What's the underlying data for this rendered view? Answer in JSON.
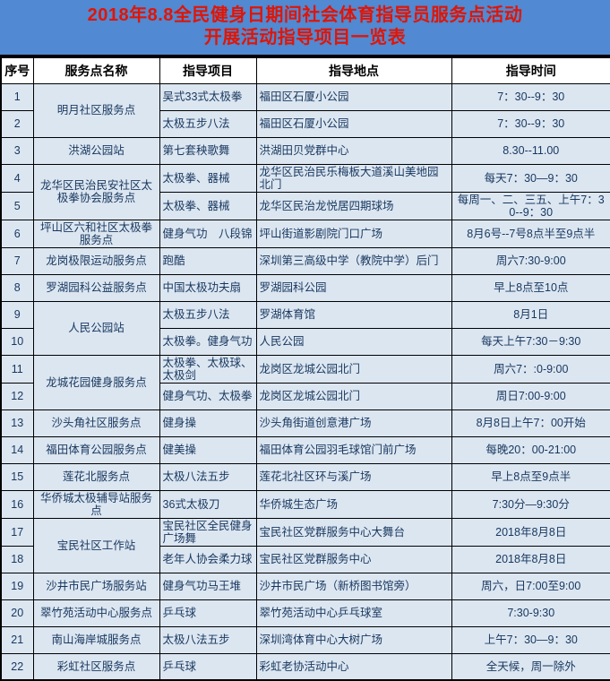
{
  "title": {
    "line1": "2018年8.8全民健身日期间社会体育指导员服务点活动",
    "line2": "开展活动指导项目一览表"
  },
  "columns": [
    "序号",
    "服务点名称",
    "指导项目",
    "指导地点",
    "指导时间"
  ],
  "colors": {
    "band_blue": "#5189d2",
    "title_red": "#e01505",
    "row_bg": "#dce6f1",
    "cell_text": "#17375e",
    "header_bg": "#ffffff",
    "header_text": "#000000",
    "border": "#000000"
  },
  "rows": [
    {
      "no": "1",
      "name": "明月社区服务点",
      "name_rowspan": 2,
      "project": "吴式33式太极拳",
      "location": "福田区石厦小公园",
      "time": "7：30--9：30"
    },
    {
      "no": "2",
      "name": null,
      "project": "太极五步八法",
      "location": "福田区石厦小公园",
      "time": "7：30--9：30"
    },
    {
      "no": "3",
      "name": "洪湖公园站",
      "name_rowspan": 1,
      "project": "第七套秧歌舞",
      "location": "洪湖田贝党群中心",
      "time": "8.30--11.00"
    },
    {
      "no": "4",
      "name": "龙华区民治民安社区太极拳协会服务点",
      "name_rowspan": 2,
      "project": "太极拳、器械",
      "location": "龙华区民治民乐梅板大道溪山美地园北门",
      "time": "每天7：30—9：30"
    },
    {
      "no": "5",
      "name": null,
      "project": "太极拳、器械",
      "location": "龙华区民治龙悦居四期球场",
      "time": "每周一、二、三五、上午7：30--9：30"
    },
    {
      "no": "6",
      "name": "坪山区六和社区太极拳服务点",
      "name_rowspan": 1,
      "project": "健身气功　八段锦",
      "location": "坪山街道影剧院门口广场",
      "time": "8月6号--7号8点半至9点半"
    },
    {
      "no": "7",
      "name": "龙岗极限运动服务点",
      "name_rowspan": 1,
      "project": "跑酷",
      "location": "深圳第三高级中学（教院中学）后门",
      "time": "周六7:30-9:00"
    },
    {
      "no": "8",
      "name": "罗湖园科公益服务点",
      "name_rowspan": 1,
      "project": "中国太极功夫扇",
      "location": "罗湖园科公园",
      "time": "早上8点至10点"
    },
    {
      "no": "9",
      "name": "人民公园站",
      "name_rowspan": 2,
      "project": "太极五步八法",
      "location": "罗湖体育馆",
      "time": "8月1日"
    },
    {
      "no": "10",
      "name": null,
      "project": "太极拳。健身气功",
      "location": "人民公园",
      "time": "每天上午7:30－9:30"
    },
    {
      "no": "11",
      "name": "龙城花园健身服务点",
      "name_rowspan": 2,
      "project": "太极拳、太极球、太极剑",
      "location": "龙岗区龙城公园北门",
      "time": "周六7：:0-9:00"
    },
    {
      "no": "12",
      "name": null,
      "project": "健身气功、太极拳",
      "location": "龙岗区龙城公园北门",
      "time": "周日7:00-9:00"
    },
    {
      "no": "13",
      "name": "沙头角社区服务点",
      "name_rowspan": 1,
      "project": "健身操",
      "location": "沙头角街道创意港广场",
      "time": "8月8日上午7：00开始"
    },
    {
      "no": "14",
      "name": "福田体育公园服务点",
      "name_rowspan": 1,
      "project": "健美操",
      "location": "福田体育公园羽毛球馆门前广场",
      "time": "每晚20：00-21:00"
    },
    {
      "no": "15",
      "name": "莲花北服务点",
      "name_rowspan": 1,
      "project": "太极八法五步",
      "location": "莲花北社区环与溪广场",
      "time": "早上8点至9点半"
    },
    {
      "no": "16",
      "name": "华侨城太极辅导站服务点",
      "name_rowspan": 1,
      "project": "36式太极刀",
      "location": "华侨城生态广场",
      "time": "7:30分—9:30分"
    },
    {
      "no": "17",
      "name": "宝民社区工作站",
      "name_rowspan": 2,
      "project": "宝民社区全民健身广场舞",
      "location": "宝民社区党群服务中心大舞台",
      "time": "2018年8月8日"
    },
    {
      "no": "18",
      "name": null,
      "project": "老年人协会柔力球",
      "location": "宝民社区党群服务中心",
      "time": "2018年8月8日"
    },
    {
      "no": "19",
      "name": "沙井市民广场服务站",
      "name_rowspan": 1,
      "project": "健身气功马王堆",
      "location": "沙井市民广场（新桥图书馆旁）",
      "time": "周六，日7:00至9:00"
    },
    {
      "no": "20",
      "name": "翠竹苑活动中心服务点",
      "name_rowspan": 1,
      "project": "乒乓球",
      "location": "翠竹苑活动中心乒乓球室",
      "time": "7:30-9:30"
    },
    {
      "no": "21",
      "name": "南山海岸城服务点",
      "name_rowspan": 1,
      "project": "太极八法五步",
      "location": "深圳湾体育中心大树广场",
      "time": "上午7：30—9：30"
    },
    {
      "no": "22",
      "name": "彩虹社区服务点",
      "name_rowspan": 1,
      "project": "乒乓球",
      "location": "彩虹老协活动中心",
      "time": "全天候，周一除外"
    }
  ]
}
